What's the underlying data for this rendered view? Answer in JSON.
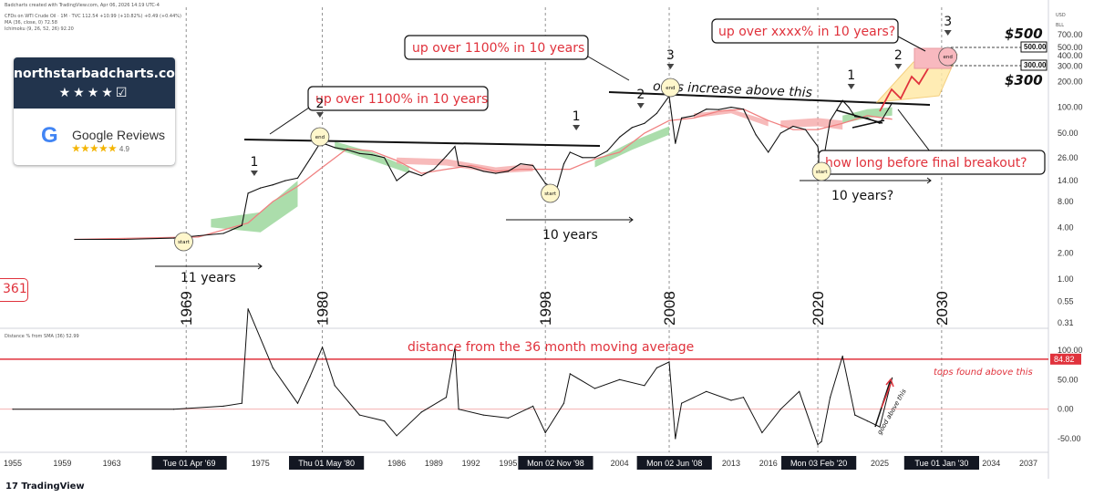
{
  "header": {
    "line1": "Badcharts created with TradingView.com, Apr 06, 2026 14:19 UTC-4",
    "line2": "CFDs on WTI Crude Oil · 1M · TVC  112.54  +10.99 (+10.82%)  +0.49 (+0.44%)",
    "line3": "MA (36, close, 0)  72.58",
    "line4": "Ichimoku (9, 26, 52, 26)  92.20",
    "line5": "Distance % from SMA (36)  52.99",
    "currency": "USD",
    "unit": "BLL"
  },
  "badge": {
    "site": "northstarbadcharts.com",
    "stars": "★★★★☑",
    "google_letter": "G",
    "google_reviews": "Google Reviews",
    "rating_stars": "★★★★★",
    "rating": "4.9"
  },
  "left_tag": "361",
  "tv_logo": "17 TradingView",
  "colors": {
    "price": "#111111",
    "ma": "#f08080",
    "cloud_green": "#8fd18f",
    "cloud_red": "#f4a3a3",
    "red_text": "#e0323c",
    "red_line": "#e0323c",
    "target_box": "#f8b9bf",
    "projection": "#ffe9a8"
  },
  "annotations": {
    "years_11": "11 years",
    "years_10a": "10 years",
    "years_10b": "10 years?",
    "callout1": "up over 1100% in 10 years",
    "callout2": "up over 1100% in 10 years",
    "callout3": "up over xxxx% in 10 years?",
    "callout4": "how long before final breakout?",
    "odds": "odds increase above this",
    "price500": "$500",
    "price300": "$300",
    "lower_title": "distance from the 36 month moving average",
    "tops": "tops found above this",
    "good_above": "good above this",
    "start": "start",
    "end": "end",
    "wave1": "1",
    "wave2": "2",
    "wave3": "3"
  },
  "year_labels": [
    "1969",
    "1980",
    "1998",
    "2008",
    "2020",
    "2030"
  ],
  "chart_data": [
    {
      "type": "line",
      "title": "",
      "scale": "log",
      "ylim": [
        0.31,
        700
      ],
      "y_ticks": [
        "700.00",
        "500.00",
        "400.00",
        "300.00",
        "200.00",
        "100.00",
        "50.00",
        "26.00",
        "14.00",
        "8.00",
        "4.00",
        "2.00",
        "1.00",
        "0.55",
        "0.31"
      ],
      "price_tags": [
        "500.00",
        "300.00"
      ],
      "series": [
        {
          "x": [
            1960,
            1964,
            1968,
            1970,
            1972,
            1973.5,
            1974,
            1975,
            1976,
            1977,
            1978,
            1979,
            1979.8,
            1980.3,
            1981,
            1982,
            1983,
            1984,
            1985,
            1986,
            1987,
            1988,
            1989,
            1990,
            1990.7,
            1991,
            1992,
            1993,
            1994,
            1995,
            1996,
            1997,
            1998,
            1998.9,
            1999.5,
            2000,
            2001,
            2002,
            2003,
            2004,
            2005,
            2006,
            2007,
            2008,
            2008.5,
            2009,
            2010,
            2011,
            2012,
            2013,
            2014,
            2015,
            2016,
            2017,
            2018,
            2019,
            2020,
            2020.3,
            2021,
            2022,
            2022.5,
            2023,
            2024,
            2025,
            2026
          ],
          "values": [
            2.9,
            2.9,
            3.0,
            3.2,
            3.4,
            4.2,
            10.0,
            11.5,
            12.5,
            14.0,
            15.0,
            25.0,
            38.0,
            37.0,
            34.0,
            32.0,
            29.0,
            28.0,
            26.0,
            14.0,
            18.0,
            16.0,
            19.0,
            27.0,
            35.0,
            21.0,
            20.0,
            18.0,
            17.0,
            18.0,
            22.0,
            21.0,
            13.0,
            11.0,
            22.0,
            30.0,
            26.0,
            26.0,
            31.0,
            45.0,
            58.0,
            65.0,
            85.0,
            135.0,
            38.0,
            75.0,
            80.0,
            95.0,
            94.0,
            100.0,
            95.0,
            48.0,
            30.0,
            50.0,
            60.0,
            55.0,
            35.0,
            18.0,
            70.0,
            120.0,
            100.0,
            78.0,
            75.0,
            65.0,
            112.54
          ]
        },
        {
          "name": "MA (36, close, 0)",
          "x": [
            1960,
            1970,
            1974,
            1976,
            1978,
            1980,
            1982,
            1984,
            1986,
            1988,
            1990,
            1992,
            1994,
            1996,
            1998,
            2000,
            2002,
            2004,
            2006,
            2008,
            2010,
            2012,
            2014,
            2016,
            2018,
            2020,
            2022,
            2024,
            2026
          ],
          "values": [
            2.9,
            3.1,
            4.5,
            8.0,
            12.0,
            20.0,
            33.0,
            31.0,
            24.0,
            17.0,
            19.0,
            21.0,
            18.0,
            19.0,
            19.0,
            19.0,
            25.0,
            30.0,
            50.0,
            70.0,
            75.0,
            90.0,
            95.0,
            70.0,
            55.0,
            55.0,
            65.0,
            80.0,
            72.58
          ]
        }
      ],
      "wave_labels": [
        {
          "year": 1968.8,
          "label": "start"
        },
        {
          "year": 1974.5,
          "label": "1"
        },
        {
          "year": 1979.8,
          "label": "2"
        },
        {
          "year": 1979.8,
          "label": "end"
        },
        {
          "year": 1998.4,
          "label": "start"
        },
        {
          "year": 2000.5,
          "label": "1"
        },
        {
          "year": 2005.7,
          "label": "2"
        },
        {
          "year": 2008.1,
          "label": "3"
        },
        {
          "year": 2008.1,
          "label": "end"
        },
        {
          "year": 2020.3,
          "label": "start"
        },
        {
          "year": 2022.7,
          "label": "1"
        },
        {
          "year": 2026.5,
          "label": "2"
        },
        {
          "year": 2030.5,
          "label": "3"
        },
        {
          "year": 2030.5,
          "label": "end"
        }
      ]
    },
    {
      "type": "line",
      "title": "distance from the 36 month moving average",
      "ylim": [
        -70,
        180
      ],
      "y_ticks": [
        "100.00",
        "50.00",
        "0.00",
        "-50.00"
      ],
      "reference_line": 84.82,
      "reference_label": "84.82",
      "series": [
        {
          "name": "Distance % from SMA (36)",
          "x": [
            1955,
            1968,
            1972,
            1973.5,
            1974,
            1976,
            1978,
            1979,
            1980,
            1981,
            1983,
            1985,
            1986,
            1988,
            1990,
            1990.7,
            1991,
            1993,
            1995,
            1997,
            1998,
            1999.5,
            2000,
            2002,
            2004,
            2006,
            2007,
            2008,
            2008.5,
            2009,
            2011,
            2013,
            2014,
            2015.5,
            2017,
            2018.5,
            2020,
            2020.3,
            2021,
            2022,
            2022.5,
            2023,
            2024,
            2025,
            2026
          ],
          "values": [
            0,
            0,
            5,
            10,
            170,
            70,
            10,
            55,
            105,
            40,
            -10,
            -20,
            -45,
            -5,
            20,
            105,
            0,
            -10,
            -15,
            5,
            -40,
            10,
            60,
            35,
            50,
            40,
            70,
            80,
            -50,
            10,
            30,
            15,
            20,
            -40,
            0,
            30,
            -60,
            -55,
            20,
            90,
            40,
            -10,
            -20,
            -30,
            52.99
          ]
        }
      ]
    }
  ],
  "x_axis": {
    "labels": [
      "1955",
      "1959",
      "1963",
      "1975",
      "1986",
      "1989",
      "1992",
      "1995",
      "2001",
      "2004",
      "2013",
      "2016",
      "2025",
      "2034",
      "2037"
    ],
    "highlights": [
      "Tue 01 Apr '69",
      "Thu 01 May '80",
      "Mon 02 Nov '98",
      "Mon 02 Jun '08",
      "Mon 03 Feb '20",
      "Tue 01 Jan '30"
    ]
  }
}
